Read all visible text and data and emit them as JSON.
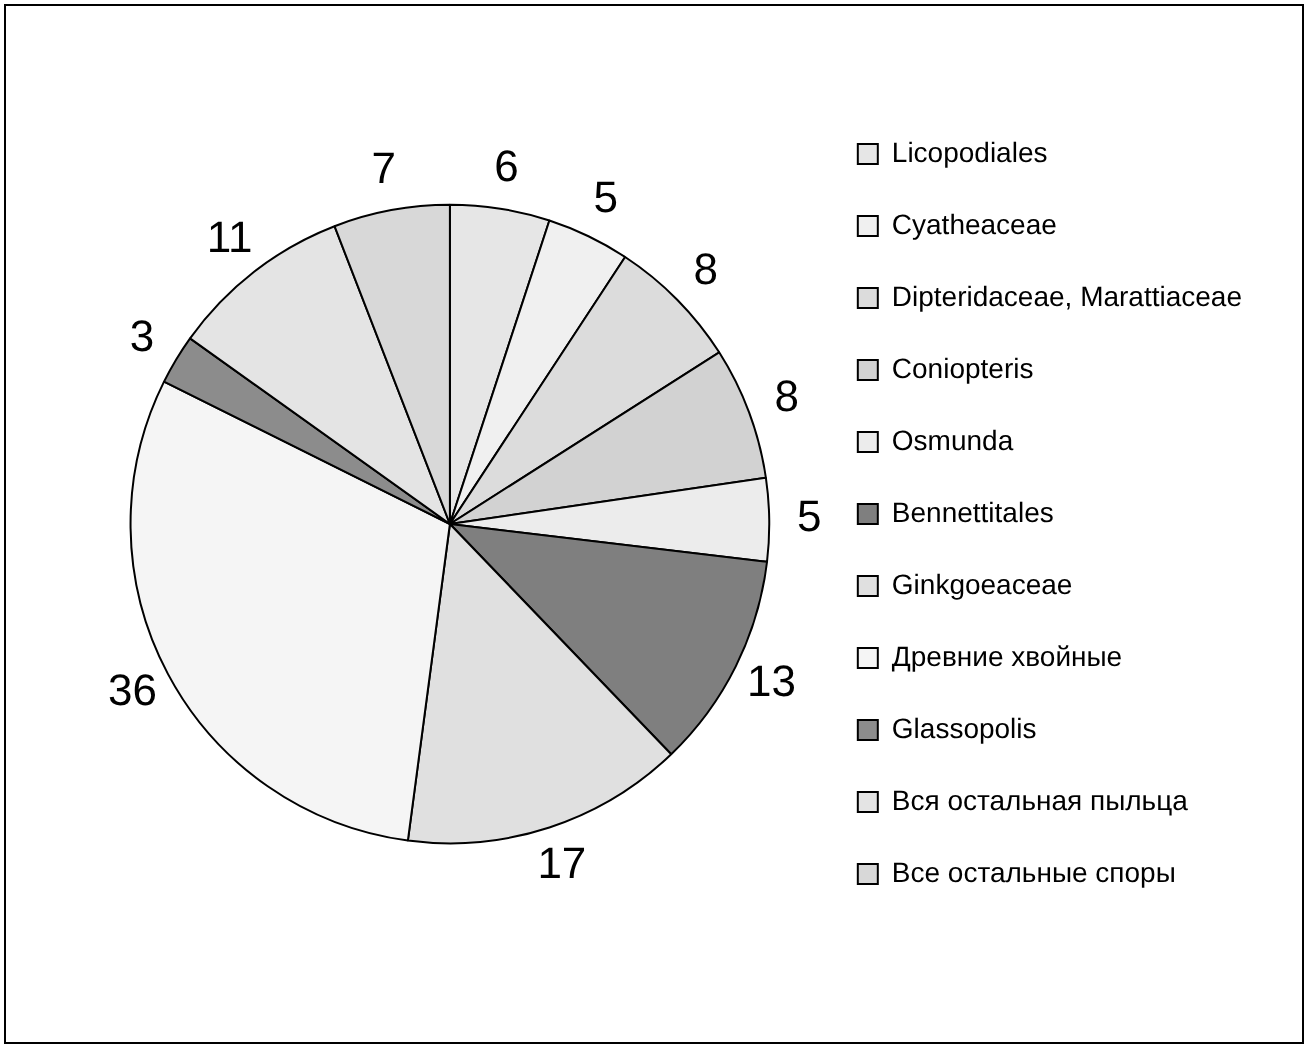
{
  "chart_data": {
    "type": "pie",
    "categories": [
      "Licopodiales",
      "Cyatheaceae",
      "Dipteridaceae, Marattiaceae",
      "Coniopteris",
      "Osmunda",
      "Bennettitales",
      "Ginkgoeaceae",
      "Древние хвойные",
      "Glassopolis",
      "Вся остальная пыльца",
      "Все остальные споры"
    ],
    "values": [
      6,
      5,
      8,
      8,
      5,
      13,
      17,
      36,
      3,
      11,
      7
    ],
    "colors": [
      "#e6e6e6",
      "#f0f0f0",
      "#dcdcdc",
      "#d2d2d2",
      "#ececec",
      "#7f7f7f",
      "#e0e0e0",
      "#f5f5f5",
      "#8c8c8c",
      "#e4e4e4",
      "#d8d8d8"
    ],
    "data_labels": true,
    "legend": "right"
  }
}
